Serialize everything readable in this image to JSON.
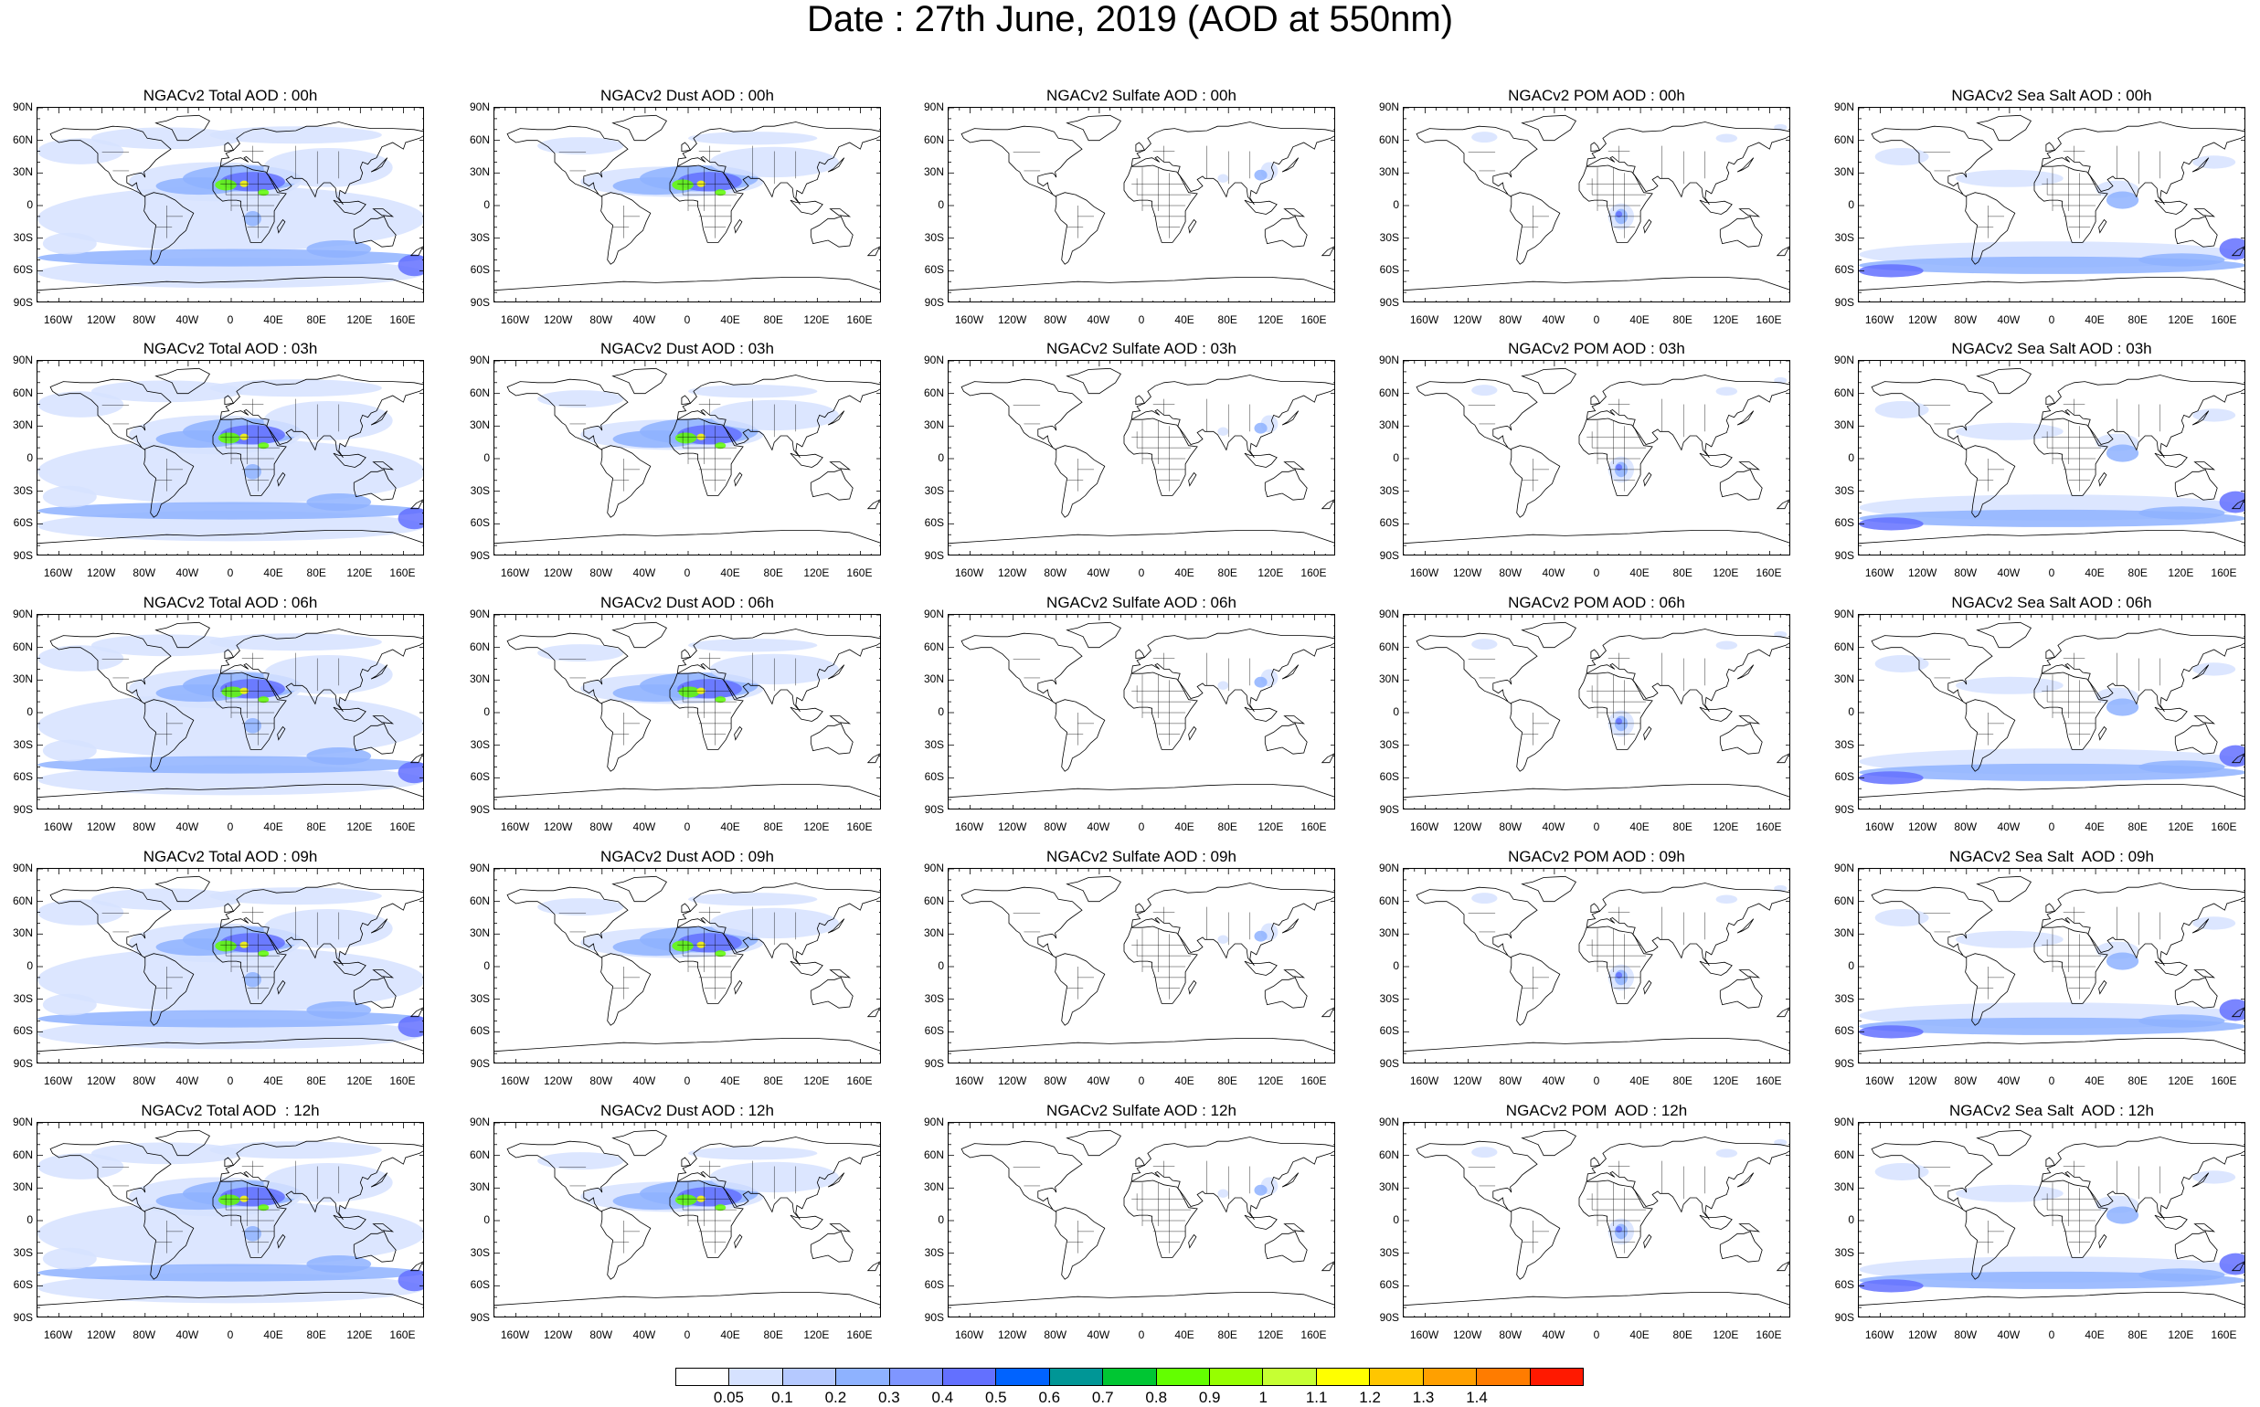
{
  "title": "Date : 27th June, 2019 (AOD at 550nm)",
  "lat_ticks": [
    "90N",
    "60N",
    "30N",
    "0",
    "30S",
    "60S",
    "90S"
  ],
  "lon_ticks": [
    "160W",
    "120W",
    "80W",
    "40W",
    "0",
    "40E",
    "80E",
    "120E",
    "160E"
  ],
  "panels": [
    [
      "NGACv2 Total AOD : 00h",
      "NGACv2 Dust AOD : 00h",
      "NGACv2 Sulfate AOD : 00h",
      "NGACv2 POM AOD : 00h",
      "NGACv2 Sea Salt AOD : 00h"
    ],
    [
      "NGACv2 Total AOD : 03h",
      "NGACv2 Dust AOD : 03h",
      "NGACv2 Sulfate AOD : 03h",
      "NGACv2 POM AOD : 03h",
      "NGACv2 Sea Salt AOD : 03h"
    ],
    [
      "NGACv2 Total AOD : 06h",
      "NGACv2 Dust AOD : 06h",
      "NGACv2 Sulfate AOD : 06h",
      "NGACv2 POM AOD : 06h",
      "NGACv2 Sea Salt AOD : 06h"
    ],
    [
      "NGACv2 Total AOD : 09h",
      "NGACv2 Dust AOD : 09h",
      "NGACv2 Sulfate AOD : 09h",
      "NGACv2 POM AOD : 09h",
      "NGACv2 Sea Salt  AOD : 09h"
    ],
    [
      "NGACv2 Total AOD  : 12h",
      "NGACv2 Dust AOD : 12h",
      "NGACv2 Sulfate AOD : 12h",
      "NGACv2 POM  AOD : 12h",
      "NGACv2 Sea Salt  AOD : 12h"
    ]
  ],
  "colorbar": {
    "labels": [
      "0.05",
      "0.1",
      "0.2",
      "0.3",
      "0.4",
      "0.5",
      "0.6",
      "0.7",
      "0.8",
      "0.9",
      "1",
      "1.1",
      "1.2",
      "1.3",
      "1.4"
    ],
    "colors": [
      "#ffffff",
      "#d6e2ff",
      "#b5c9ff",
      "#8eb2ff",
      "#7f96ff",
      "#6370ff",
      "#0063ff",
      "#009696",
      "#00c633",
      "#63ff00",
      "#96ff00",
      "#c6ff33",
      "#ffff00",
      "#ffc600",
      "#ffa000",
      "#ff7c00",
      "#ff1900"
    ]
  },
  "aerosol_colors": {
    "low": "#d6e2ff",
    "mid": "#8eb2ff",
    "high": "#6370ff",
    "dust_core": "#63ff00",
    "dust_peak": "#ffff00"
  }
}
